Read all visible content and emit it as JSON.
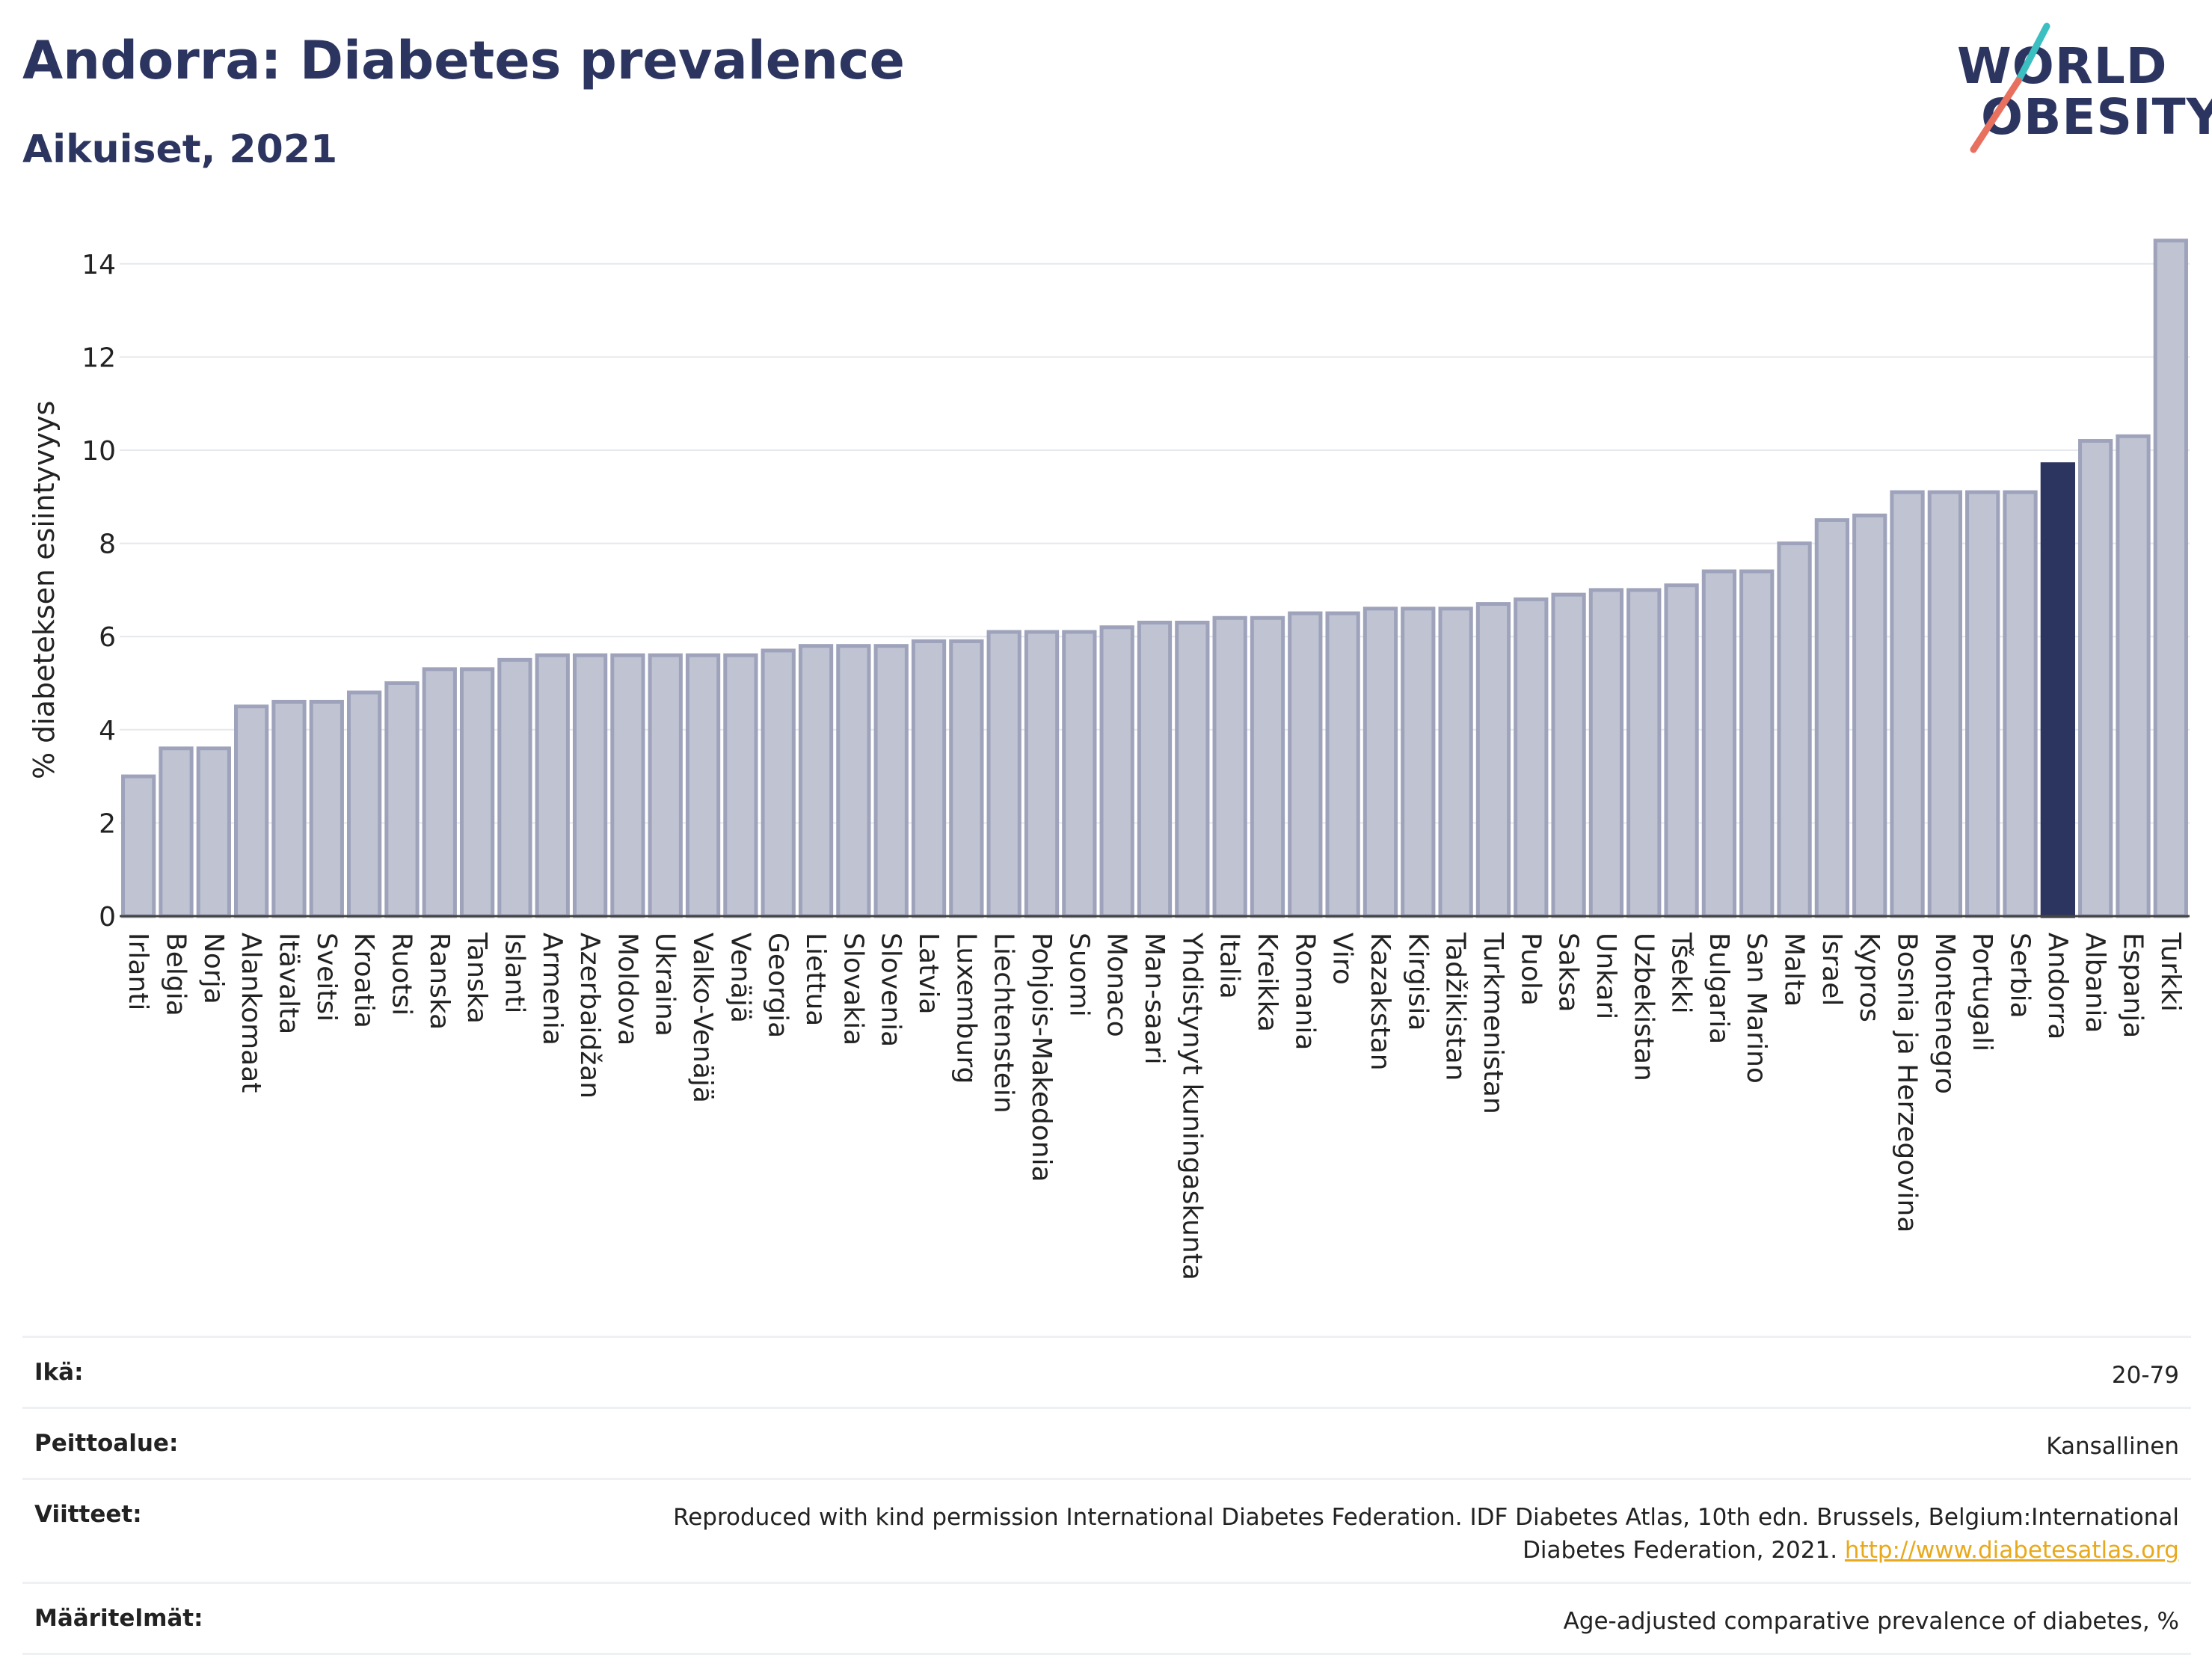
{
  "header": {
    "title": "Andorra: Diabetes prevalence",
    "subtitle": "Aikuiset, 2021"
  },
  "logo": {
    "line1": "WORLD",
    "line2": "OBESITY"
  },
  "colors": {
    "bar": "#bfc3d2",
    "bar_border": "#9ea3bb",
    "highlight": "#2c3560",
    "accent_teal": "#3bbfc0",
    "accent_coral": "#e8705f",
    "link": "#e8a91c"
  },
  "chart_data": {
    "type": "bar",
    "ylabel": "% diabeteksen esiintyvyys",
    "xlabel": "",
    "ylim": [
      0,
      15
    ],
    "yticks": [
      0,
      2,
      4,
      6,
      8,
      10,
      12,
      14
    ],
    "grid": true,
    "highlight": "Andorra",
    "categories": [
      "Irlanti",
      "Belgia",
      "Norja",
      "Alankomaat",
      "Itävalta",
      "Sveitsi",
      "Kroatia",
      "Ruotsi",
      "Ranska",
      "Tanska",
      "Islanti",
      "Armenia",
      "Azerbaidžan",
      "Moldova",
      "Ukraina",
      "Valko-Venäjä",
      "Venäjä",
      "Georgia",
      "Liettua",
      "Slovakia",
      "Slovenia",
      "Latvia",
      "Luxemburg",
      "Liechtenstein",
      "Pohjois-Makedonia",
      "Suomi",
      "Monaco",
      "Man-saari",
      "Yhdistynyt kuningaskunta",
      "Italia",
      "Kreikka",
      "Romania",
      "Viro",
      "Kazakstan",
      "Kirgisia",
      "Tadžikistan",
      "Turkmenistan",
      "Puola",
      "Saksa",
      "Unkari",
      "Uzbekistan",
      "Tšekki",
      "Bulgaria",
      "San Marino",
      "Malta",
      "Israel",
      "Kypros",
      "Bosnia ja Herzegovina",
      "Montenegro",
      "Portugali",
      "Serbia",
      "Andorra",
      "Albania",
      "Espanja",
      "Turkki"
    ],
    "values": [
      3.0,
      3.6,
      3.6,
      4.5,
      4.6,
      4.6,
      4.8,
      5.0,
      5.3,
      5.3,
      5.5,
      5.6,
      5.6,
      5.6,
      5.6,
      5.6,
      5.6,
      5.7,
      5.8,
      5.8,
      5.8,
      5.9,
      5.9,
      6.1,
      6.1,
      6.1,
      6.2,
      6.3,
      6.3,
      6.4,
      6.4,
      6.5,
      6.5,
      6.6,
      6.6,
      6.6,
      6.7,
      6.8,
      6.9,
      7.0,
      7.0,
      7.1,
      7.4,
      7.4,
      8.0,
      8.5,
      8.6,
      9.1,
      9.1,
      9.1,
      9.1,
      9.7,
      10.2,
      10.3,
      14.5
    ]
  },
  "footer": {
    "rows": [
      {
        "label": "Ikä:",
        "value": "20-79"
      },
      {
        "label": "Peittoalue:",
        "value": "Kansallinen"
      },
      {
        "label": "Viitteet:",
        "value": "Reproduced with kind permission International Diabetes Federation.  IDF Diabetes Atlas, 10th edn. Brussels, Belgium:International Diabetes Federation, 2021.",
        "link": "http://www.diabetesatlas.org"
      },
      {
        "label": "Määritelmät:",
        "value": "Age-adjusted comparative prevalence of diabetes, %"
      }
    ]
  }
}
